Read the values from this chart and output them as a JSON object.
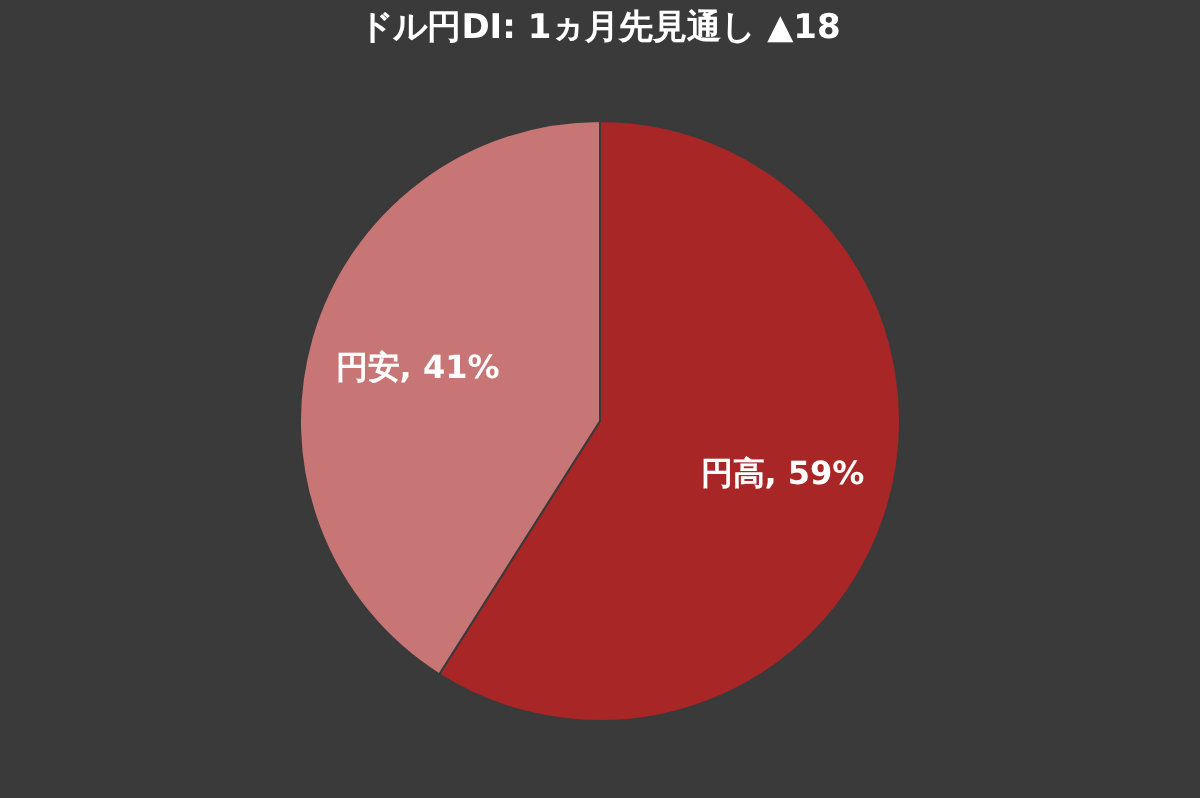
{
  "chart_data": {
    "type": "pie",
    "title": "ドル円DI: 1ヵ月先見通し ▲18",
    "categories": [
      "円高",
      "円安"
    ],
    "values": [
      59,
      41
    ],
    "colors": [
      "#a82626",
      "#c77575"
    ],
    "value_labels": [
      "59%",
      "41%"
    ],
    "legend": false
  }
}
